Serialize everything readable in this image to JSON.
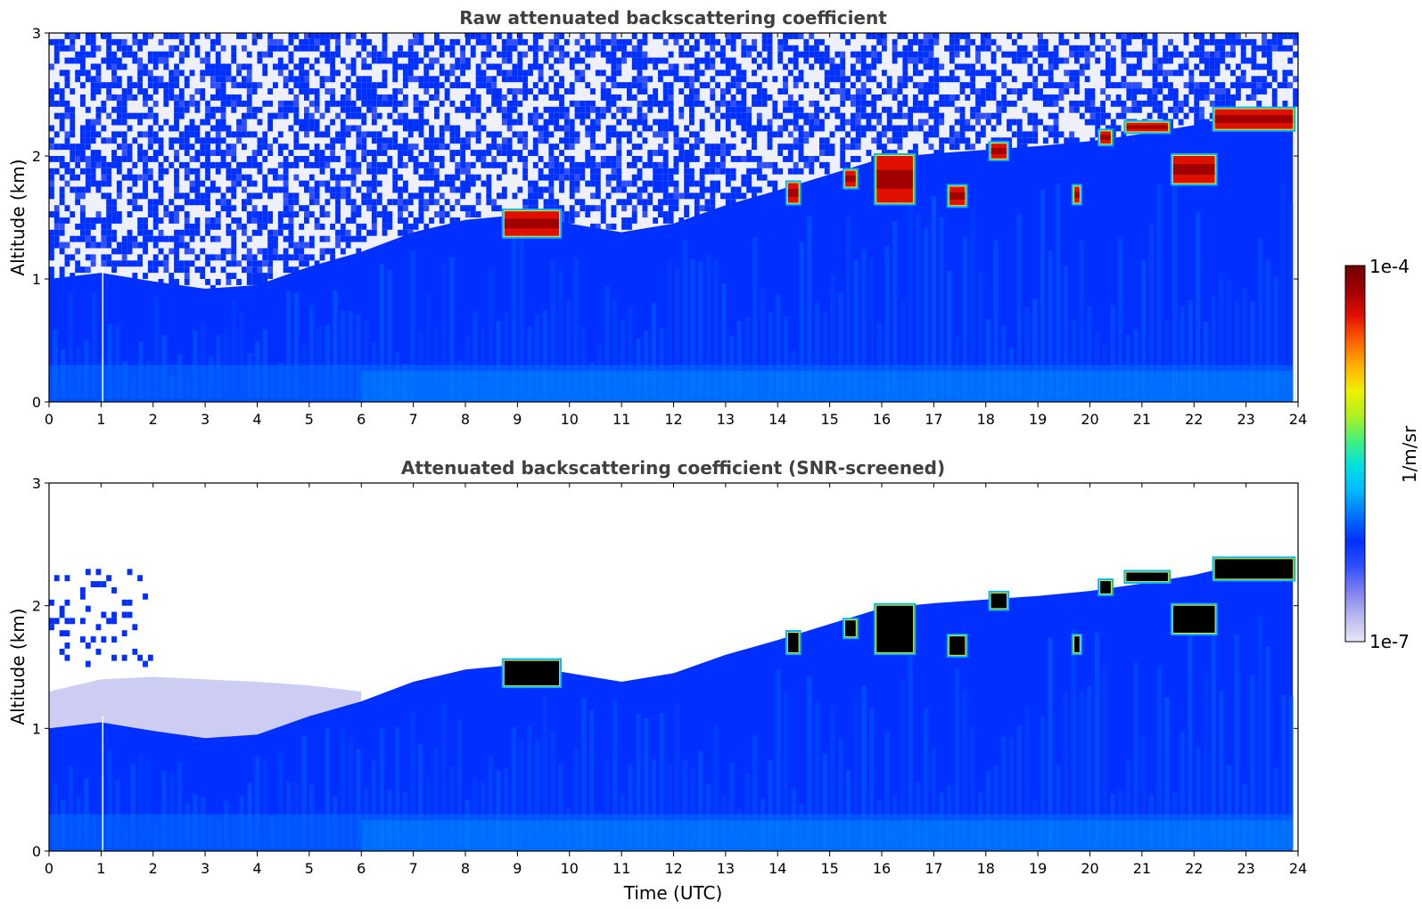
{
  "colormap": [
    "#e6e6f8",
    "#b8b8f0",
    "#8080f0",
    "#3050ff",
    "#0030ff",
    "#0070ff",
    "#00b8ff",
    "#00e0e0",
    "#40f080",
    "#b0f020",
    "#f0f000",
    "#ffb000",
    "#ff6000",
    "#e01000",
    "#a00000",
    "#700000"
  ],
  "chart_data": [
    {
      "type": "heatmap",
      "title": "Raw attenuated backscattering coefficient",
      "xlabel": "",
      "ylabel": "Altitude (km)",
      "xlim": [
        0,
        24
      ],
      "ylim": [
        0,
        3
      ],
      "xticks": [
        "0",
        "1",
        "2",
        "3",
        "4",
        "5",
        "6",
        "7",
        "8",
        "9",
        "10",
        "11",
        "12",
        "13",
        "14",
        "15",
        "16",
        "17",
        "18",
        "19",
        "20",
        "21",
        "22",
        "23",
        "24"
      ],
      "yticks": [
        "0",
        "1",
        "2",
        "3"
      ],
      "screened": false,
      "boundary_layer_top_km": {
        "x": [
          0,
          1,
          2,
          3,
          4,
          5,
          6,
          7,
          8,
          9,
          10,
          11,
          12,
          13,
          14,
          15,
          16,
          17,
          18,
          19,
          20,
          21,
          22,
          23,
          23.9
        ],
        "y": [
          1.0,
          1.05,
          0.98,
          0.92,
          0.95,
          1.1,
          1.22,
          1.38,
          1.48,
          1.52,
          1.45,
          1.38,
          1.45,
          1.6,
          1.72,
          1.85,
          1.98,
          2.02,
          2.05,
          2.08,
          2.12,
          2.18,
          2.25,
          2.35,
          2.4
        ]
      },
      "clouds": [
        {
          "x0": 8.75,
          "x1": 9.8,
          "y0": 1.35,
          "y1": 1.55
        },
        {
          "x0": 14.2,
          "x1": 14.4,
          "y0": 1.62,
          "y1": 1.78
        },
        {
          "x0": 15.3,
          "x1": 15.5,
          "y0": 1.75,
          "y1": 1.88
        },
        {
          "x0": 15.9,
          "x1": 16.6,
          "y0": 1.62,
          "y1": 2.0
        },
        {
          "x0": 17.3,
          "x1": 17.6,
          "y0": 1.6,
          "y1": 1.75
        },
        {
          "x0": 18.1,
          "x1": 18.4,
          "y0": 1.98,
          "y1": 2.1
        },
        {
          "x0": 19.7,
          "x1": 19.8,
          "y0": 1.62,
          "y1": 1.75
        },
        {
          "x0": 20.2,
          "x1": 20.4,
          "y0": 2.1,
          "y1": 2.2
        },
        {
          "x0": 20.7,
          "x1": 21.5,
          "y0": 2.2,
          "y1": 2.27
        },
        {
          "x0": 21.6,
          "x1": 22.4,
          "y0": 1.78,
          "y1": 2.0
        },
        {
          "x0": 22.4,
          "x1": 23.9,
          "y0": 2.22,
          "y1": 2.38
        }
      ]
    },
    {
      "type": "heatmap",
      "title": "Attenuated backscattering coefficient (SNR-screened)",
      "xlabel": "Time (UTC)",
      "ylabel": "Altitude (km)",
      "xlim": [
        0,
        24
      ],
      "ylim": [
        0,
        3
      ],
      "xticks": [
        "0",
        "1",
        "2",
        "3",
        "4",
        "5",
        "6",
        "7",
        "8",
        "9",
        "10",
        "11",
        "12",
        "13",
        "14",
        "15",
        "16",
        "17",
        "18",
        "19",
        "20",
        "21",
        "22",
        "23",
        "24"
      ],
      "yticks": [
        "0",
        "1",
        "2",
        "3"
      ],
      "screened": true,
      "boundary_layer_top_km": {
        "x": [
          0,
          1,
          2,
          3,
          4,
          5,
          6,
          7,
          8,
          9,
          10,
          11,
          12,
          13,
          14,
          15,
          16,
          17,
          18,
          19,
          20,
          21,
          22,
          23,
          23.9
        ],
        "y": [
          1.0,
          1.05,
          0.98,
          0.92,
          0.95,
          1.1,
          1.22,
          1.38,
          1.48,
          1.52,
          1.45,
          1.38,
          1.45,
          1.6,
          1.72,
          1.85,
          1.98,
          2.02,
          2.05,
          2.08,
          2.12,
          2.18,
          2.25,
          2.35,
          2.4
        ]
      },
      "clouds": [
        {
          "x0": 8.75,
          "x1": 9.8,
          "y0": 1.35,
          "y1": 1.55
        },
        {
          "x0": 14.2,
          "x1": 14.4,
          "y0": 1.62,
          "y1": 1.78
        },
        {
          "x0": 15.3,
          "x1": 15.5,
          "y0": 1.75,
          "y1": 1.88
        },
        {
          "x0": 15.9,
          "x1": 16.6,
          "y0": 1.62,
          "y1": 2.0
        },
        {
          "x0": 17.3,
          "x1": 17.6,
          "y0": 1.6,
          "y1": 1.75
        },
        {
          "x0": 18.1,
          "x1": 18.4,
          "y0": 1.98,
          "y1": 2.1
        },
        {
          "x0": 19.7,
          "x1": 19.8,
          "y0": 1.62,
          "y1": 1.75
        },
        {
          "x0": 20.2,
          "x1": 20.4,
          "y0": 2.1,
          "y1": 2.2
        },
        {
          "x0": 20.7,
          "x1": 21.5,
          "y0": 2.2,
          "y1": 2.27
        },
        {
          "x0": 21.6,
          "x1": 22.4,
          "y0": 1.78,
          "y1": 2.0
        },
        {
          "x0": 22.4,
          "x1": 23.9,
          "y0": 2.22,
          "y1": 2.38
        }
      ]
    }
  ],
  "colorbar": {
    "label": "1/m/sr",
    "max_label": "1e-4",
    "min_label": "1e-7"
  }
}
